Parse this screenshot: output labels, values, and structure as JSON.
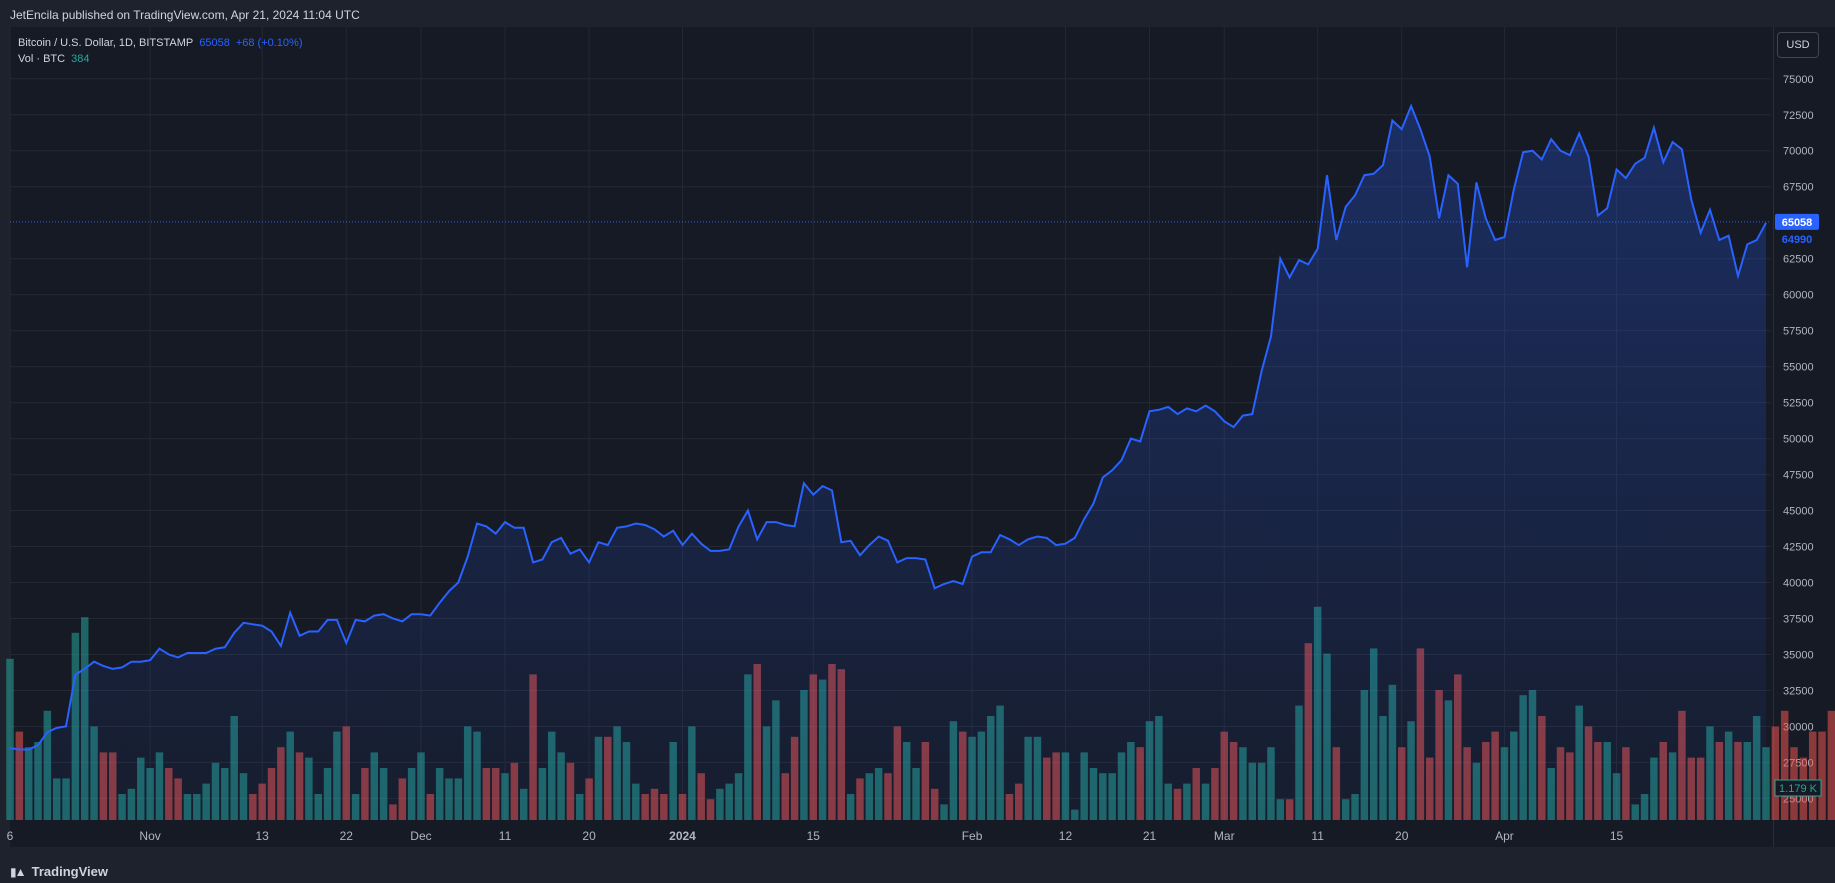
{
  "header": {
    "publisher": "JetEncila published on TradingView.com, Apr 21, 2024 11:04 UTC"
  },
  "legend": {
    "symbol": "Bitcoin / U.S. Dollar, 1D, BITSTAMP",
    "price": "65058",
    "change": "+68 (+0.10%)",
    "vol_label": "Vol · BTC",
    "vol_value": "384"
  },
  "currency_button": "USD",
  "footer": {
    "brand": "TradingView",
    "logo_icon": "tradingview-logo-icon"
  },
  "colors": {
    "line": "#2962ff",
    "vol_up": "#26a69a",
    "vol_down": "#ef5350",
    "price_tag": "#2962ff",
    "vol_tag": "#26a69a"
  },
  "tags": {
    "last_price": "65058",
    "prev_close": "64990",
    "volume": "1.179 K"
  },
  "chart_data": {
    "type": "area",
    "x_ticks": [
      "6",
      "Nov",
      "13",
      "22",
      "Dec",
      "11",
      "20",
      "2024",
      "15",
      "Feb",
      "12",
      "21",
      "Mar",
      "11",
      "20",
      "Apr",
      "15"
    ],
    "y_ticks": [
      25000,
      27500,
      30000,
      32500,
      35000,
      37500,
      40000,
      42500,
      45000,
      47500,
      50000,
      52500,
      55000,
      57500,
      60000,
      62500,
      67500,
      70000,
      72500,
      75000
    ],
    "ylim": [
      23500,
      77000
    ],
    "price_series": {
      "name": "Bitcoin / U.S. Dollar",
      "values": [
        28500,
        28400,
        28400,
        28700,
        29600,
        29900,
        30000,
        33600,
        34000,
        34500,
        34200,
        34000,
        34100,
        34500,
        34500,
        34600,
        35400,
        35000,
        34800,
        35100,
        35100,
        35100,
        35400,
        35500,
        36500,
        37200,
        37100,
        37000,
        36600,
        35600,
        37900,
        36300,
        36600,
        36600,
        37400,
        37400,
        35800,
        37400,
        37300,
        37700,
        37800,
        37500,
        37300,
        37800,
        37800,
        37700,
        38600,
        39400,
        40000,
        41800,
        44100,
        43900,
        43400,
        44200,
        43800,
        43800,
        41400,
        41600,
        42800,
        43100,
        42000,
        42300,
        41400,
        42800,
        42600,
        43800,
        43900,
        44100,
        44000,
        43700,
        43200,
        43600,
        42600,
        43400,
        42700,
        42200,
        42200,
        42300,
        43900,
        45000,
        43000,
        44200,
        44200,
        44000,
        43900,
        46900,
        46100,
        46700,
        46400,
        42800,
        42900,
        41900,
        42600,
        43200,
        42900,
        41400,
        41700,
        41700,
        41600,
        39600,
        39900,
        40100,
        39900,
        41800,
        42100,
        42100,
        43300,
        43000,
        42600,
        43000,
        43200,
        43100,
        42600,
        42700,
        43100,
        44400,
        45500,
        47300,
        47800,
        48500,
        50000,
        49800,
        51900,
        52000,
        52200,
        51700,
        52100,
        51900,
        52300,
        51900,
        51200,
        50800,
        51600,
        51700,
        54700,
        57100,
        62500,
        61200,
        62400,
        62100,
        63200,
        68300,
        63800,
        66100,
        66900,
        68300,
        68400,
        69000,
        72100,
        71500,
        73100,
        71500,
        69600,
        65300,
        68300,
        67700,
        61900,
        67800,
        65300,
        63800,
        64000,
        67300,
        69900,
        70000,
        69400,
        70800,
        70000,
        69700,
        71200,
        69600,
        65500,
        66000,
        68700,
        68100,
        69100,
        69500,
        71600,
        69200,
        70600,
        70100,
        66600,
        64300,
        65900,
        63800,
        64100,
        61300,
        63500,
        63800,
        64990
      ]
    },
    "volume_series": {
      "name": "Vol · BTC",
      "ylim_note": "volume pane",
      "values": [
        3100,
        1700,
        1400,
        1500,
        2100,
        800,
        800,
        3600,
        3900,
        1800,
        1300,
        1300,
        500,
        600,
        1200,
        1000,
        1300,
        1000,
        800,
        500,
        500,
        700,
        1100,
        1000,
        2000,
        900,
        500,
        700,
        1000,
        1400,
        1700,
        1300,
        1200,
        500,
        1000,
        1700,
        1800,
        500,
        1000,
        1300,
        1000,
        300,
        800,
        1000,
        1300,
        500,
        1000,
        800,
        800,
        1800,
        1700,
        1000,
        1000,
        900,
        1100,
        600,
        2800,
        1000,
        1700,
        1300,
        1100,
        500,
        800,
        1600,
        1600,
        1800,
        1500,
        700,
        500,
        600,
        500,
        1500,
        500,
        1800,
        900,
        400,
        600,
        700,
        900,
        2800,
        3000,
        1800,
        2300,
        900,
        1600,
        2500,
        2800,
        2700,
        3000,
        2900,
        500,
        800,
        900,
        1000,
        900,
        1800,
        1500,
        1000,
        1500,
        600,
        300,
        1900,
        1700,
        1600,
        1700,
        2000,
        2200,
        500,
        700,
        1600,
        1600,
        1200,
        1300,
        1300,
        200,
        1300,
        1000,
        900,
        900,
        1300,
        1500,
        1400,
        1900,
        2000,
        700,
        600,
        700,
        1000,
        700,
        1000,
        1700,
        1500,
        1400,
        1100,
        1100,
        1400,
        400,
        400,
        2200,
        3400,
        4100,
        3200,
        1400,
        400,
        500,
        2500,
        3300,
        2000,
        2600,
        1400,
        1900,
        3300,
        1200,
        2500,
        2300,
        2800,
        1400,
        1100,
        1500,
        1700,
        1400,
        1700,
        2400,
        2500,
        2000,
        1000,
        1400,
        1300,
        2200,
        1800,
        1500,
        1500,
        900,
        1400,
        300,
        500,
        1200,
        1500,
        1300,
        2100,
        1200,
        1200,
        1800,
        1500,
        1700,
        1500,
        1500,
        2000,
        1400,
        1800,
        2100,
        1400,
        1200,
        1700,
        1700,
        2100,
        1100,
        1300
      ]
    }
  }
}
